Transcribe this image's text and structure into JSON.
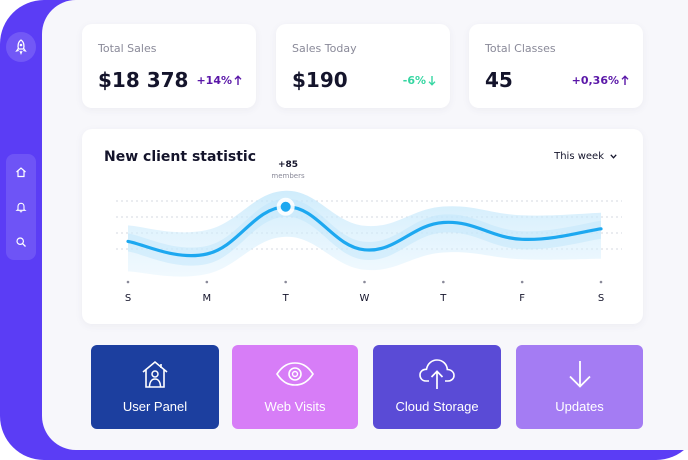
{
  "stats": [
    {
      "label": "Total Sales",
      "value": "$18 378",
      "change": "+14%",
      "direction": "up",
      "color": "#5a17a8"
    },
    {
      "label": "Sales Today",
      "value": "$190",
      "change": "-6%",
      "direction": "down",
      "color": "#36d6a2"
    },
    {
      "label": "Total Classes",
      "value": "45",
      "change": "+0,36%",
      "direction": "up",
      "color": "#5a17a8"
    }
  ],
  "chart": {
    "title": "New client statistic",
    "range_label": "This week",
    "peak_value": "+85",
    "peak_unit": "members",
    "days": [
      "S",
      "M",
      "T",
      "W",
      "T",
      "F",
      "S"
    ]
  },
  "chart_data": {
    "type": "line",
    "x": [
      "S",
      "M",
      "T",
      "W",
      "T",
      "F",
      "S"
    ],
    "series": [
      {
        "values": [
          52,
          40,
          85,
          44,
          70,
          54,
          64
        ]
      }
    ],
    "ylim": [
      20,
      100
    ],
    "grid": true,
    "annotations": [
      {
        "x": "T",
        "text": "+85 members"
      }
    ]
  },
  "tiles": [
    {
      "label": "User Panel",
      "icon": "house-user-icon",
      "color": "#1c3f9f"
    },
    {
      "label": "Web Visits",
      "icon": "eye-icon",
      "color": "#d77df7"
    },
    {
      "label": "Cloud Storage",
      "icon": "cloud-upload-icon",
      "color": "#5a4bd6"
    },
    {
      "label": "Updates",
      "icon": "arrow-down-icon",
      "color": "#a47cf3"
    }
  ],
  "sidebar": {
    "logo_icon": "rocket-icon",
    "nav": [
      "home-icon",
      "bell-icon",
      "search-icon"
    ]
  },
  "colors": {
    "frame": "#5b3df5",
    "line": "#1da8f0"
  }
}
